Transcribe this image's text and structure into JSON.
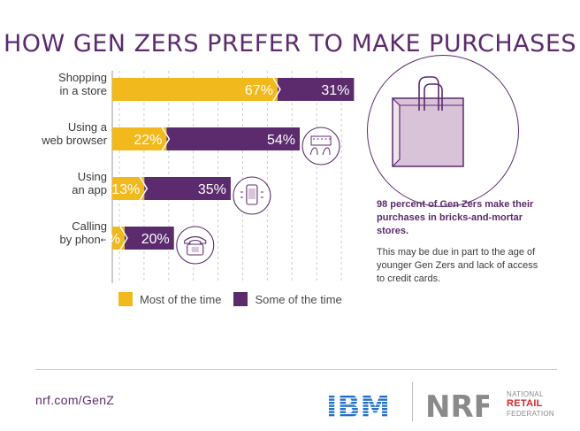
{
  "title": "HOW GEN ZERS PREFER TO MAKE PURCHASES",
  "chart_data": {
    "type": "bar",
    "orientation": "horizontal",
    "stacked": true,
    "categories": [
      [
        "Shopping",
        "in a store"
      ],
      [
        "Using a",
        "web browser"
      ],
      [
        "Using",
        "an app"
      ],
      [
        "Calling",
        "by phone"
      ]
    ],
    "series": [
      {
        "name": "Most of the time",
        "color": "#f2b91d",
        "values": [
          67,
          22,
          13,
          5
        ],
        "labels": [
          "67%",
          "22%",
          "13%",
          "5%"
        ]
      },
      {
        "name": "Some of the time",
        "color": "#5c2b6e",
        "values": [
          31,
          54,
          35,
          20
        ],
        "labels": [
          "31%",
          "54%",
          "35%",
          "20%"
        ]
      }
    ],
    "xlim": [
      0,
      100
    ],
    "grid": true,
    "legend": "bottom",
    "icons": [
      "keyboard-hands-icon",
      "phone-app-icon",
      "telephone-icon"
    ]
  },
  "callout": {
    "bold": "98 percent of Gen Zers make their purchases in bricks-and-mortar stores.",
    "text": "This may be due in part to the age of younger Gen Zers and lack of access to credit cards."
  },
  "footer": {
    "url": "nrf.com/GenZ",
    "ibm": "IBM",
    "nrf": "NRF",
    "nrf_line1": "NATIONAL",
    "nrf_line2": "RETAIL",
    "nrf_line3": "FEDERATION"
  },
  "colors": {
    "purple": "#5c2b6e",
    "gold": "#f2b91d",
    "red": "#d5262e",
    "ibm_blue": "#1f6fc5"
  }
}
